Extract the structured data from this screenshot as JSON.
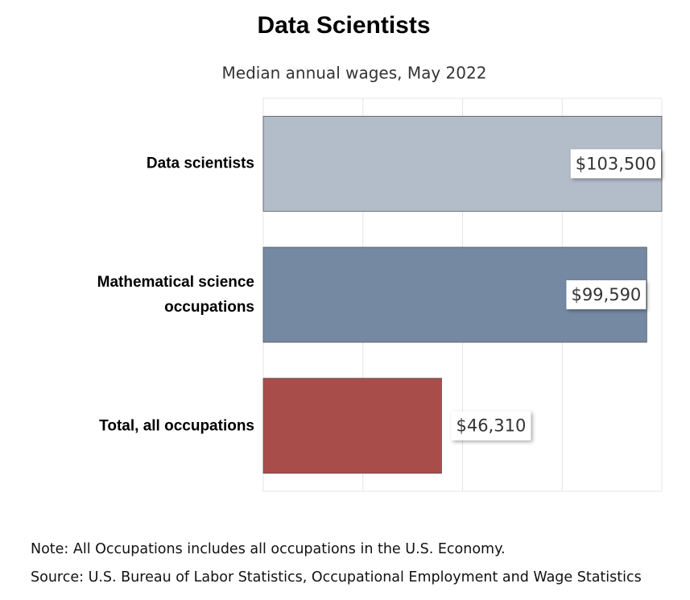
{
  "chart_data": {
    "type": "hbar",
    "title": "Data Scientists",
    "subtitle": "Median annual wages, May 2022",
    "categories": [
      "Data scientists",
      "Mathematical science occupations",
      "Total, all occupations"
    ],
    "values": [
      103500,
      99590,
      46310
    ],
    "value_labels": [
      "$103,500",
      "$99,590",
      "$46,310"
    ],
    "colors": [
      "#b3bdca",
      "#7589a3",
      "#a84d49"
    ],
    "xlim": [
      0,
      103500
    ],
    "xticks": [
      0,
      25875,
      51750,
      77625,
      103500
    ],
    "grid": true,
    "note": "Note: All Occupations includes all occupations in the U.S. Economy.",
    "source": "Source: U.S. Bureau of Labor Statistics, Occupational Employment and Wage Statistics"
  }
}
